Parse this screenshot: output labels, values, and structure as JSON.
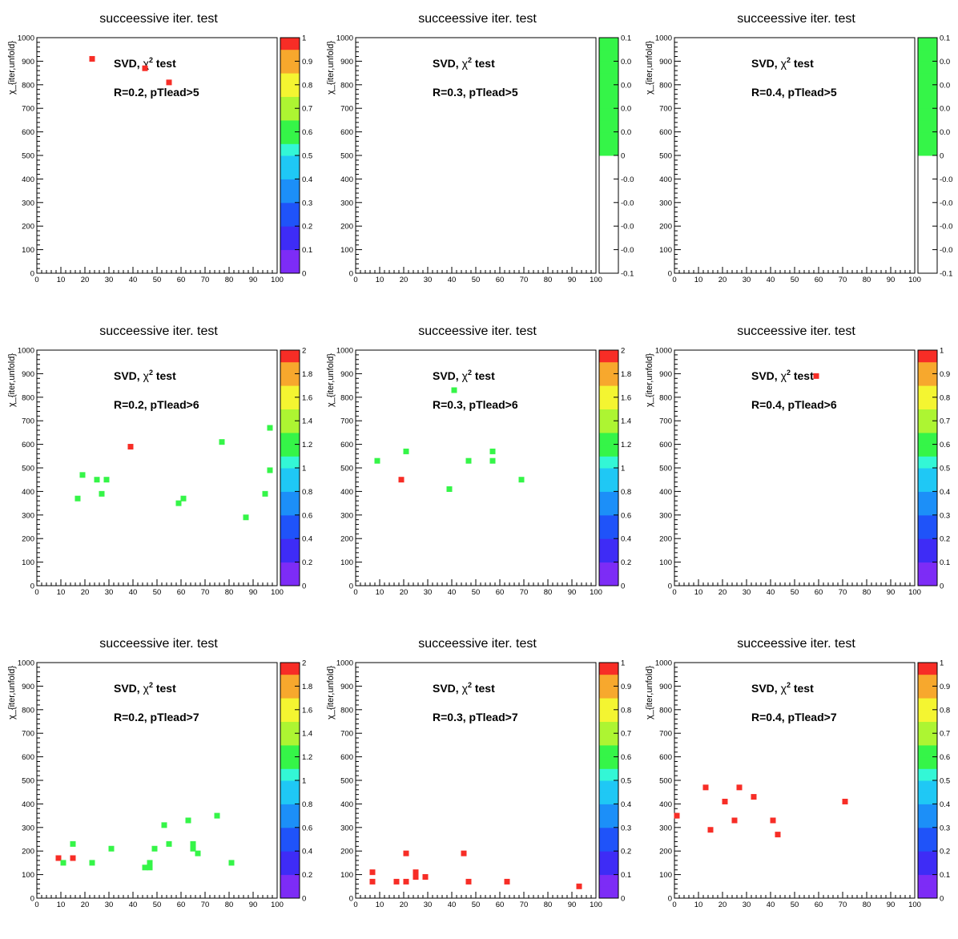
{
  "chart_data": [
    {
      "type": "scatter",
      "title": "succeessive iter. test",
      "ylabel": "χ_{iter,unfold}",
      "xlim": [
        0,
        100
      ],
      "ylim": [
        0,
        1000
      ],
      "zlim": [
        0,
        1
      ],
      "z_ticks": [
        "0",
        "0.1",
        "0.2",
        "0.3",
        "0.4",
        "0.5",
        "0.6",
        "0.7",
        "0.8",
        "0.9",
        "1"
      ],
      "annotation_1": "SVD, χ² test",
      "annotation_2": "R=0.2, pTlead>5",
      "points": [
        {
          "x": 23,
          "y": 910,
          "z": 1
        },
        {
          "x": 45,
          "y": 870,
          "z": 1
        },
        {
          "x": 55,
          "y": 810,
          "z": 1
        }
      ]
    },
    {
      "type": "scatter",
      "title": "succeessive iter. test",
      "ylabel": "χ_{iter,unfold}",
      "xlim": [
        0,
        100
      ],
      "ylim": [
        0,
        1000
      ],
      "zlim": [
        -0.1,
        0.1
      ],
      "z_ticks": [
        "-0.1",
        "-0.0",
        "-0.0",
        "-0.0",
        "-0.0",
        "0",
        "0.0",
        "0.0",
        "0.0",
        "0.0",
        "0.1"
      ],
      "annotation_1": "SVD, χ² test",
      "annotation_2": "R=0.3, pTlead>5",
      "points": []
    },
    {
      "type": "scatter",
      "title": "succeessive iter. test",
      "ylabel": "χ_{iter,unfold}",
      "xlim": [
        0,
        100
      ],
      "ylim": [
        0,
        1000
      ],
      "zlim": [
        -0.1,
        0.1
      ],
      "z_ticks": [
        "-0.1",
        "-0.0",
        "-0.0",
        "-0.0",
        "-0.0",
        "0",
        "0.0",
        "0.0",
        "0.0",
        "0.0",
        "0.1"
      ],
      "annotation_1": "SVD, χ² test",
      "annotation_2": "R=0.4, pTlead>5",
      "points": []
    },
    {
      "type": "scatter",
      "title": "succeessive iter. test",
      "ylabel": "χ_{iter,unfold}",
      "xlim": [
        0,
        100
      ],
      "ylim": [
        0,
        1000
      ],
      "zlim": [
        0,
        2
      ],
      "z_ticks": [
        "0",
        "0.2",
        "0.4",
        "0.6",
        "0.8",
        "1",
        "1.2",
        "1.4",
        "1.6",
        "1.8",
        "2"
      ],
      "annotation_1": "SVD, χ² test",
      "annotation_2": "R=0.2, pTlead>6",
      "points": [
        {
          "x": 39,
          "y": 590,
          "z": 2
        },
        {
          "x": 19,
          "y": 470,
          "z": 1
        },
        {
          "x": 25,
          "y": 450,
          "z": 1
        },
        {
          "x": 29,
          "y": 450,
          "z": 1
        },
        {
          "x": 17,
          "y": 370,
          "z": 1
        },
        {
          "x": 27,
          "y": 390,
          "z": 1
        },
        {
          "x": 59,
          "y": 350,
          "z": 1
        },
        {
          "x": 61,
          "y": 370,
          "z": 1
        },
        {
          "x": 77,
          "y": 610,
          "z": 1
        },
        {
          "x": 97,
          "y": 670,
          "z": 1
        },
        {
          "x": 97,
          "y": 490,
          "z": 1
        },
        {
          "x": 95,
          "y": 390,
          "z": 1
        },
        {
          "x": 87,
          "y": 290,
          "z": 1
        }
      ]
    },
    {
      "type": "scatter",
      "title": "succeessive iter. test",
      "ylabel": "χ_{iter,unfold}",
      "xlim": [
        0,
        100
      ],
      "ylim": [
        0,
        1000
      ],
      "zlim": [
        0,
        2
      ],
      "z_ticks": [
        "0",
        "0.2",
        "0.4",
        "0.6",
        "0.8",
        "1",
        "1.2",
        "1.4",
        "1.6",
        "1.8",
        "2"
      ],
      "annotation_1": "SVD, χ² test",
      "annotation_2": "R=0.3, pTlead>6",
      "points": [
        {
          "x": 41,
          "y": 830,
          "z": 1
        },
        {
          "x": 9,
          "y": 530,
          "z": 1
        },
        {
          "x": 21,
          "y": 570,
          "z": 1
        },
        {
          "x": 19,
          "y": 450,
          "z": 2
        },
        {
          "x": 39,
          "y": 410,
          "z": 1
        },
        {
          "x": 47,
          "y": 530,
          "z": 1
        },
        {
          "x": 57,
          "y": 570,
          "z": 1
        },
        {
          "x": 57,
          "y": 530,
          "z": 1
        },
        {
          "x": 69,
          "y": 450,
          "z": 1
        }
      ]
    },
    {
      "type": "scatter",
      "title": "succeessive iter. test",
      "ylabel": "χ_{iter,unfold}",
      "xlim": [
        0,
        100
      ],
      "ylim": [
        0,
        1000
      ],
      "zlim": [
        0,
        1
      ],
      "z_ticks": [
        "0",
        "0.1",
        "0.2",
        "0.3",
        "0.4",
        "0.5",
        "0.6",
        "0.7",
        "0.8",
        "0.9",
        "1"
      ],
      "annotation_1": "SVD, χ² test",
      "annotation_2": "R=0.4, pTlead>6",
      "points": [
        {
          "x": 59,
          "y": 890,
          "z": 1
        }
      ]
    },
    {
      "type": "scatter",
      "title": "succeessive iter. test",
      "ylabel": "χ_{iter,unfold}",
      "xlim": [
        0,
        100
      ],
      "ylim": [
        0,
        1000
      ],
      "zlim": [
        0,
        2
      ],
      "z_ticks": [
        "0",
        "0.2",
        "0.4",
        "0.6",
        "0.8",
        "1",
        "1.2",
        "1.4",
        "1.6",
        "1.8",
        "2"
      ],
      "annotation_1": "SVD, χ² test",
      "annotation_2": "R=0.2, pTlead>7",
      "points": [
        {
          "x": 9,
          "y": 170,
          "z": 2
        },
        {
          "x": 15,
          "y": 170,
          "z": 2
        },
        {
          "x": 11,
          "y": 150,
          "z": 1
        },
        {
          "x": 15,
          "y": 230,
          "z": 1
        },
        {
          "x": 23,
          "y": 150,
          "z": 1
        },
        {
          "x": 31,
          "y": 210,
          "z": 1
        },
        {
          "x": 45,
          "y": 130,
          "z": 1
        },
        {
          "x": 47,
          "y": 130,
          "z": 1
        },
        {
          "x": 47,
          "y": 150,
          "z": 1
        },
        {
          "x": 49,
          "y": 210,
          "z": 1
        },
        {
          "x": 53,
          "y": 310,
          "z": 1
        },
        {
          "x": 55,
          "y": 230,
          "z": 1
        },
        {
          "x": 63,
          "y": 330,
          "z": 1
        },
        {
          "x": 65,
          "y": 230,
          "z": 1
        },
        {
          "x": 65,
          "y": 210,
          "z": 1
        },
        {
          "x": 67,
          "y": 190,
          "z": 1
        },
        {
          "x": 75,
          "y": 350,
          "z": 1
        },
        {
          "x": 81,
          "y": 150,
          "z": 1
        }
      ]
    },
    {
      "type": "scatter",
      "title": "succeessive iter. test",
      "ylabel": "χ_{iter,unfold}",
      "xlim": [
        0,
        100
      ],
      "ylim": [
        0,
        1000
      ],
      "zlim": [
        0,
        1
      ],
      "z_ticks": [
        "0",
        "0.1",
        "0.2",
        "0.3",
        "0.4",
        "0.5",
        "0.6",
        "0.7",
        "0.8",
        "0.9",
        "1"
      ],
      "annotation_1": "SVD, χ² test",
      "annotation_2": "R=0.3, pTlead>7",
      "points": [
        {
          "x": 7,
          "y": 110,
          "z": 1
        },
        {
          "x": 7,
          "y": 70,
          "z": 1
        },
        {
          "x": 17,
          "y": 70,
          "z": 1
        },
        {
          "x": 21,
          "y": 190,
          "z": 1
        },
        {
          "x": 21,
          "y": 70,
          "z": 1
        },
        {
          "x": 25,
          "y": 110,
          "z": 1
        },
        {
          "x": 25,
          "y": 90,
          "z": 1
        },
        {
          "x": 29,
          "y": 90,
          "z": 1
        },
        {
          "x": 45,
          "y": 190,
          "z": 1
        },
        {
          "x": 47,
          "y": 70,
          "z": 1
        },
        {
          "x": 63,
          "y": 70,
          "z": 1
        },
        {
          "x": 93,
          "y": 50,
          "z": 1
        }
      ]
    },
    {
      "type": "scatter",
      "title": "succeessive iter. test",
      "ylabel": "χ_{iter,unfold}",
      "xlim": [
        0,
        100
      ],
      "ylim": [
        0,
        1000
      ],
      "zlim": [
        0,
        1
      ],
      "z_ticks": [
        "0",
        "0.1",
        "0.2",
        "0.3",
        "0.4",
        "0.5",
        "0.6",
        "0.7",
        "0.8",
        "0.9",
        "1"
      ],
      "annotation_1": "SVD, χ² test",
      "annotation_2": "R=0.4, pTlead>7",
      "points": [
        {
          "x": 1,
          "y": 350,
          "z": 1
        },
        {
          "x": 13,
          "y": 470,
          "z": 1
        },
        {
          "x": 15,
          "y": 290,
          "z": 1
        },
        {
          "x": 21,
          "y": 410,
          "z": 1
        },
        {
          "x": 25,
          "y": 330,
          "z": 1
        },
        {
          "x": 27,
          "y": 470,
          "z": 1
        },
        {
          "x": 33,
          "y": 430,
          "z": 1
        },
        {
          "x": 41,
          "y": 330,
          "z": 1
        },
        {
          "x": 43,
          "y": 270,
          "z": 1
        },
        {
          "x": 71,
          "y": 410,
          "z": 1
        }
      ]
    }
  ],
  "x_ticks": [
    "0",
    "10",
    "20",
    "30",
    "40",
    "50",
    "60",
    "70",
    "80",
    "90",
    "100"
  ],
  "y_ticks": [
    "0",
    "100",
    "200",
    "300",
    "400",
    "500",
    "600",
    "700",
    "800",
    "900",
    "1000"
  ],
  "palette": [
    "#7d2cf6",
    "#3e2cf6",
    "#1f53f9",
    "#1c8ff8",
    "#1fc8f5",
    "#33f7d6",
    "#35f548",
    "#adf532",
    "#f4f531",
    "#f7a82d",
    "#f72d26"
  ]
}
